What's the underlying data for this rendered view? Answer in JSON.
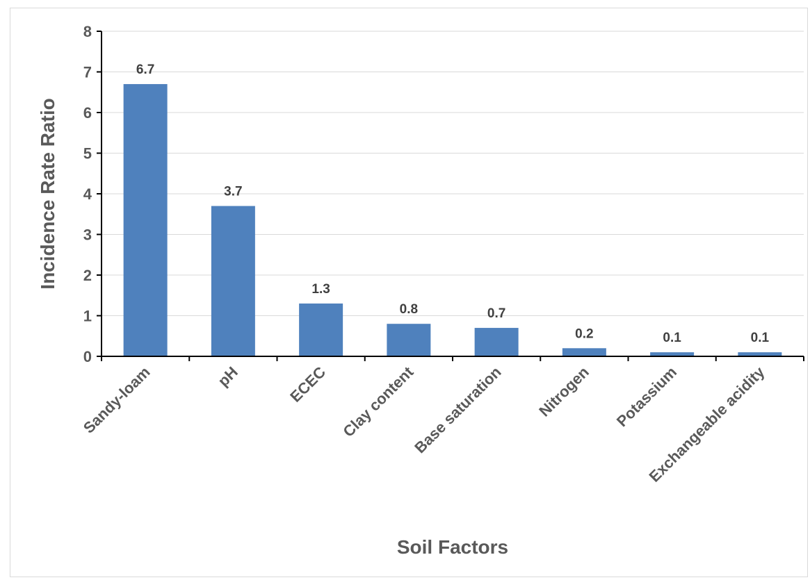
{
  "chart_data": {
    "type": "bar",
    "title": "",
    "xlabel": "Soil Factors",
    "ylabel": "Incidence Rate Ratio",
    "categories": [
      "Sandy-loam",
      "pH",
      "ECEC",
      "Clay content",
      "Base saturation",
      "Nitrogen",
      "Potassium",
      "Exchangeable acidity"
    ],
    "values": [
      6.7,
      3.7,
      1.3,
      0.8,
      0.7,
      0.2,
      0.1,
      0.1
    ],
    "data_labels": [
      "6.7",
      "3.7",
      "1.3",
      "0.8",
      "0.7",
      "0.2",
      "0.1",
      "0.1"
    ],
    "ylim": [
      0,
      8
    ],
    "yticks": [
      "0",
      "1",
      "2",
      "3",
      "4",
      "5",
      "6",
      "7",
      "8"
    ],
    "grid": true,
    "bar_color": "#4F81BD",
    "gridline_color": "#D9D9D9",
    "axis_color": "#000000"
  }
}
